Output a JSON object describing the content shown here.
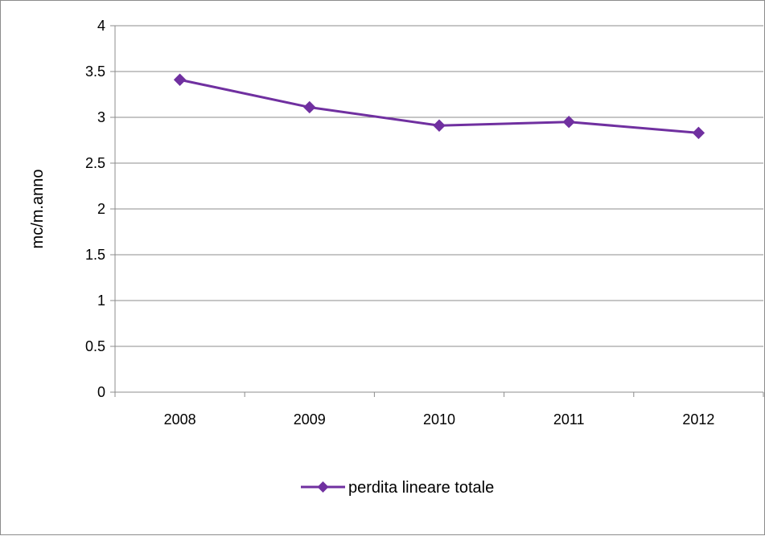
{
  "chart_data": {
    "type": "line",
    "title": "",
    "xlabel": "",
    "ylabel": "mc/m.anno",
    "categories": [
      "2008",
      "2009",
      "2010",
      "2011",
      "2012"
    ],
    "series": [
      {
        "name": "perdita lineare totale",
        "values": [
          3.41,
          3.11,
          2.91,
          2.95,
          2.83
        ],
        "color": "#7030a0",
        "marker": "diamond"
      }
    ],
    "ylim": [
      0,
      4
    ],
    "yticks": [
      "0",
      "0.5",
      "1",
      "1.5",
      "2",
      "2.5",
      "3",
      "3.5",
      "4"
    ],
    "grid": "horizontal",
    "legend_position": "bottom"
  }
}
